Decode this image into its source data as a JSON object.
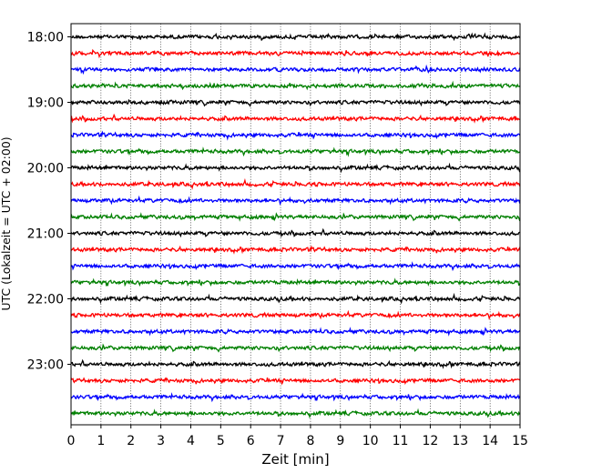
{
  "chart_data": {
    "type": "line",
    "title": "",
    "xlabel": "Zeit  [min]",
    "ylabel": "UTC (Lokalzeit = UTC + 02:00)",
    "xlim": [
      0,
      15
    ],
    "x_ticks": [
      "0",
      "1",
      "2",
      "3",
      "4",
      "5",
      "6",
      "7",
      "8",
      "9",
      "10",
      "11",
      "12",
      "13",
      "14",
      "15"
    ],
    "y_tick_labels": [
      "18:00",
      "19:00",
      "20:00",
      "21:00",
      "22:00",
      "23:00"
    ],
    "y_tick_rows": [
      0,
      4,
      8,
      12,
      16,
      20
    ],
    "grid": "vertical dotted lines at each minute",
    "trace_count": 24,
    "trace_interval_min": 15,
    "trace_start_utc": "18:00",
    "trace_colors": [
      "#000000",
      "#ff0000",
      "#0000ff",
      "#008000"
    ]
  }
}
